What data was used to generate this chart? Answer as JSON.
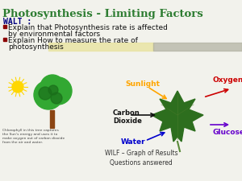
{
  "title": "Photosynthesis - Limiting Factors",
  "title_color": "#2e7d32",
  "title_fontsize": 9.5,
  "bg_color": "#f2f2ec",
  "walt_text": "WALT :",
  "walt_color": "#000080",
  "walt_fontsize": 7,
  "bullet1a": "Explain that Photosynthesis rate is affected",
  "bullet1b": "by environmental factors",
  "bullet2a": "Explain How to measure the rate of",
  "bullet2b": "photosynthesis",
  "bullet_color": "#111111",
  "bullet_fontsize": 6.5,
  "bullet_square_color": "#8B0000",
  "wilf_text": "WILF – Graph of Results\nQuestions answered",
  "wilf_color": "#333333",
  "wilf_fontsize": 5.5,
  "sunlight_label": "Sunlight",
  "sunlight_color": "#FFA500",
  "co2_label": "Carbon\nDioxide",
  "co2_color": "#111111",
  "water_label": "Water",
  "water_color": "#0000CD",
  "oxygen_label": "Oxygen",
  "oxygen_color": "#CC0000",
  "glucose_label": "Glucose",
  "glucose_color": "#6600CC",
  "small_text": "Chlorophyll in this tree captures\nthe Sun's energy and uses it to\nmake oxygen out of carbon dioxide\nfrom the air and water.",
  "small_text_fontsize": 3.2
}
